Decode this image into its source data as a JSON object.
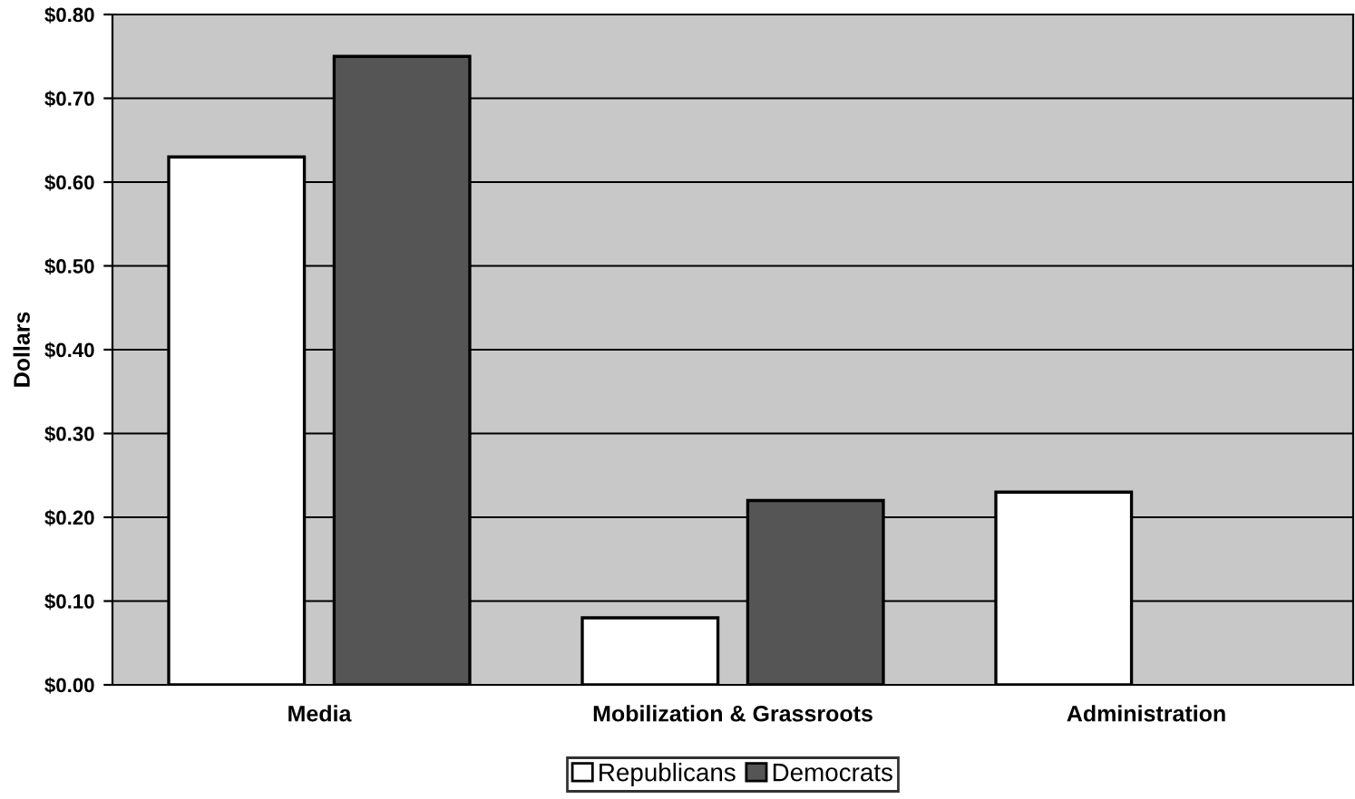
{
  "chart_data": {
    "type": "bar",
    "ylabel": "Dollars",
    "categories": [
      "Media",
      "Mobilization & Grassroots",
      "Administration"
    ],
    "series": [
      {
        "name": "Republicans",
        "color": "#ffffff",
        "values": [
          0.63,
          0.08,
          0.23
        ]
      },
      {
        "name": "Democrats",
        "color": "#555555",
        "values": [
          0.75,
          0.22,
          null
        ]
      }
    ],
    "ylim": [
      0,
      0.8
    ],
    "yticks": [
      {
        "value": 0,
        "label": "$0.00"
      },
      {
        "value": 0.1,
        "label": "$0.10"
      },
      {
        "value": 0.2,
        "label": "$0.20"
      },
      {
        "value": 0.3,
        "label": "$0.30"
      },
      {
        "value": 0.4,
        "label": "$0.40"
      },
      {
        "value": 0.5,
        "label": "$0.50"
      },
      {
        "value": 0.6,
        "label": "$0.60"
      },
      {
        "value": 0.7,
        "label": "$0.70"
      },
      {
        "value": 0.8,
        "label": "$0.80"
      }
    ],
    "grid": "y",
    "legend": "bottom"
  }
}
